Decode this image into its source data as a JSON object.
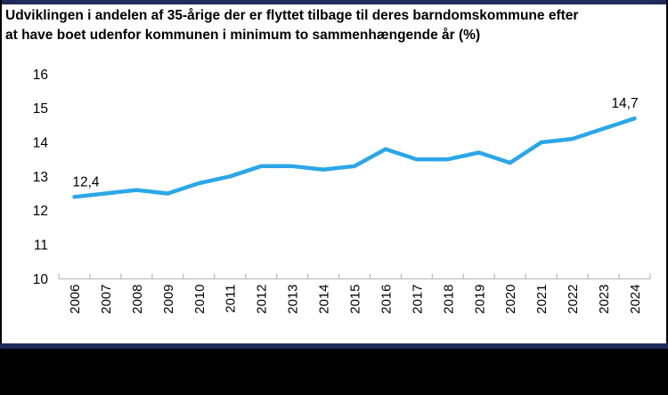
{
  "page": {
    "title_lines": [
      "Udviklingen i andelen af 35-årige der er flyttet tilbage til deres barndomskommune efter",
      "at have boet udenfor kommunen i minimum to sammenhængende år (%)"
    ],
    "colors": {
      "accent_navy": "#202a5c",
      "line_blue": "#2BA7E8",
      "axis_gray": "#BFBFBF",
      "text_black": "#000000",
      "footer_black": "#000000",
      "background": "#FFFFFF"
    }
  },
  "chart_data": {
    "type": "line",
    "title": "Udviklingen i andelen af 35-årige der er flyttet tilbage til deres barndomskommune efter at have boet udenfor kommunen i minimum to sammenhængende år (%)",
    "categories": [
      "2006",
      "2007",
      "2008",
      "2009",
      "2010",
      "2011",
      "2012",
      "2013",
      "2014",
      "2015",
      "2016",
      "2017",
      "2018",
      "2019",
      "2020",
      "2021",
      "2022",
      "2023",
      "2024"
    ],
    "values": [
      12.4,
      12.5,
      12.6,
      12.5,
      12.8,
      13.0,
      13.3,
      13.3,
      13.2,
      13.3,
      13.8,
      13.5,
      13.5,
      13.7,
      13.4,
      14.0,
      14.1,
      14.4,
      14.7
    ],
    "xlabel": "",
    "ylabel": "",
    "ylim": [
      10,
      16
    ],
    "yticks": [
      10,
      11,
      12,
      13,
      14,
      15,
      16
    ],
    "grid": false,
    "legend": "none",
    "line_color": "#2BA7E8",
    "decimal_separator": ",",
    "labeled_points": [
      {
        "index": 0,
        "text": "12,4"
      },
      {
        "index": 18,
        "text": "14,7"
      }
    ]
  }
}
